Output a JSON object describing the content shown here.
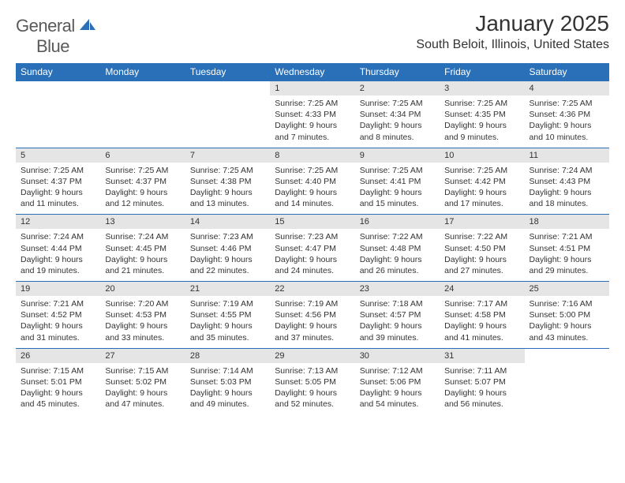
{
  "logo": {
    "word1": "General",
    "word2": "Blue"
  },
  "title": "January 2025",
  "location": "South Beloit, Illinois, United States",
  "colors": {
    "header_bg": "#2970b8",
    "header_fg": "#ffffff",
    "daynum_bg": "#e5e5e5",
    "border": "#2970b8",
    "text": "#333333",
    "logo_gray": "#5a5a5a",
    "logo_blue": "#2970b8"
  },
  "day_names": [
    "Sunday",
    "Monday",
    "Tuesday",
    "Wednesday",
    "Thursday",
    "Friday",
    "Saturday"
  ],
  "weeks": [
    [
      null,
      null,
      null,
      {
        "n": "1",
        "sr": "Sunrise: 7:25 AM",
        "ss": "Sunset: 4:33 PM",
        "d1": "Daylight: 9 hours",
        "d2": "and 7 minutes."
      },
      {
        "n": "2",
        "sr": "Sunrise: 7:25 AM",
        "ss": "Sunset: 4:34 PM",
        "d1": "Daylight: 9 hours",
        "d2": "and 8 minutes."
      },
      {
        "n": "3",
        "sr": "Sunrise: 7:25 AM",
        "ss": "Sunset: 4:35 PM",
        "d1": "Daylight: 9 hours",
        "d2": "and 9 minutes."
      },
      {
        "n": "4",
        "sr": "Sunrise: 7:25 AM",
        "ss": "Sunset: 4:36 PM",
        "d1": "Daylight: 9 hours",
        "d2": "and 10 minutes."
      }
    ],
    [
      {
        "n": "5",
        "sr": "Sunrise: 7:25 AM",
        "ss": "Sunset: 4:37 PM",
        "d1": "Daylight: 9 hours",
        "d2": "and 11 minutes."
      },
      {
        "n": "6",
        "sr": "Sunrise: 7:25 AM",
        "ss": "Sunset: 4:37 PM",
        "d1": "Daylight: 9 hours",
        "d2": "and 12 minutes."
      },
      {
        "n": "7",
        "sr": "Sunrise: 7:25 AM",
        "ss": "Sunset: 4:38 PM",
        "d1": "Daylight: 9 hours",
        "d2": "and 13 minutes."
      },
      {
        "n": "8",
        "sr": "Sunrise: 7:25 AM",
        "ss": "Sunset: 4:40 PM",
        "d1": "Daylight: 9 hours",
        "d2": "and 14 minutes."
      },
      {
        "n": "9",
        "sr": "Sunrise: 7:25 AM",
        "ss": "Sunset: 4:41 PM",
        "d1": "Daylight: 9 hours",
        "d2": "and 15 minutes."
      },
      {
        "n": "10",
        "sr": "Sunrise: 7:25 AM",
        "ss": "Sunset: 4:42 PM",
        "d1": "Daylight: 9 hours",
        "d2": "and 17 minutes."
      },
      {
        "n": "11",
        "sr": "Sunrise: 7:24 AM",
        "ss": "Sunset: 4:43 PM",
        "d1": "Daylight: 9 hours",
        "d2": "and 18 minutes."
      }
    ],
    [
      {
        "n": "12",
        "sr": "Sunrise: 7:24 AM",
        "ss": "Sunset: 4:44 PM",
        "d1": "Daylight: 9 hours",
        "d2": "and 19 minutes."
      },
      {
        "n": "13",
        "sr": "Sunrise: 7:24 AM",
        "ss": "Sunset: 4:45 PM",
        "d1": "Daylight: 9 hours",
        "d2": "and 21 minutes."
      },
      {
        "n": "14",
        "sr": "Sunrise: 7:23 AM",
        "ss": "Sunset: 4:46 PM",
        "d1": "Daylight: 9 hours",
        "d2": "and 22 minutes."
      },
      {
        "n": "15",
        "sr": "Sunrise: 7:23 AM",
        "ss": "Sunset: 4:47 PM",
        "d1": "Daylight: 9 hours",
        "d2": "and 24 minutes."
      },
      {
        "n": "16",
        "sr": "Sunrise: 7:22 AM",
        "ss": "Sunset: 4:48 PM",
        "d1": "Daylight: 9 hours",
        "d2": "and 26 minutes."
      },
      {
        "n": "17",
        "sr": "Sunrise: 7:22 AM",
        "ss": "Sunset: 4:50 PM",
        "d1": "Daylight: 9 hours",
        "d2": "and 27 minutes."
      },
      {
        "n": "18",
        "sr": "Sunrise: 7:21 AM",
        "ss": "Sunset: 4:51 PM",
        "d1": "Daylight: 9 hours",
        "d2": "and 29 minutes."
      }
    ],
    [
      {
        "n": "19",
        "sr": "Sunrise: 7:21 AM",
        "ss": "Sunset: 4:52 PM",
        "d1": "Daylight: 9 hours",
        "d2": "and 31 minutes."
      },
      {
        "n": "20",
        "sr": "Sunrise: 7:20 AM",
        "ss": "Sunset: 4:53 PM",
        "d1": "Daylight: 9 hours",
        "d2": "and 33 minutes."
      },
      {
        "n": "21",
        "sr": "Sunrise: 7:19 AM",
        "ss": "Sunset: 4:55 PM",
        "d1": "Daylight: 9 hours",
        "d2": "and 35 minutes."
      },
      {
        "n": "22",
        "sr": "Sunrise: 7:19 AM",
        "ss": "Sunset: 4:56 PM",
        "d1": "Daylight: 9 hours",
        "d2": "and 37 minutes."
      },
      {
        "n": "23",
        "sr": "Sunrise: 7:18 AM",
        "ss": "Sunset: 4:57 PM",
        "d1": "Daylight: 9 hours",
        "d2": "and 39 minutes."
      },
      {
        "n": "24",
        "sr": "Sunrise: 7:17 AM",
        "ss": "Sunset: 4:58 PM",
        "d1": "Daylight: 9 hours",
        "d2": "and 41 minutes."
      },
      {
        "n": "25",
        "sr": "Sunrise: 7:16 AM",
        "ss": "Sunset: 5:00 PM",
        "d1": "Daylight: 9 hours",
        "d2": "and 43 minutes."
      }
    ],
    [
      {
        "n": "26",
        "sr": "Sunrise: 7:15 AM",
        "ss": "Sunset: 5:01 PM",
        "d1": "Daylight: 9 hours",
        "d2": "and 45 minutes."
      },
      {
        "n": "27",
        "sr": "Sunrise: 7:15 AM",
        "ss": "Sunset: 5:02 PM",
        "d1": "Daylight: 9 hours",
        "d2": "and 47 minutes."
      },
      {
        "n": "28",
        "sr": "Sunrise: 7:14 AM",
        "ss": "Sunset: 5:03 PM",
        "d1": "Daylight: 9 hours",
        "d2": "and 49 minutes."
      },
      {
        "n": "29",
        "sr": "Sunrise: 7:13 AM",
        "ss": "Sunset: 5:05 PM",
        "d1": "Daylight: 9 hours",
        "d2": "and 52 minutes."
      },
      {
        "n": "30",
        "sr": "Sunrise: 7:12 AM",
        "ss": "Sunset: 5:06 PM",
        "d1": "Daylight: 9 hours",
        "d2": "and 54 minutes."
      },
      {
        "n": "31",
        "sr": "Sunrise: 7:11 AM",
        "ss": "Sunset: 5:07 PM",
        "d1": "Daylight: 9 hours",
        "d2": "and 56 minutes."
      },
      null
    ]
  ]
}
